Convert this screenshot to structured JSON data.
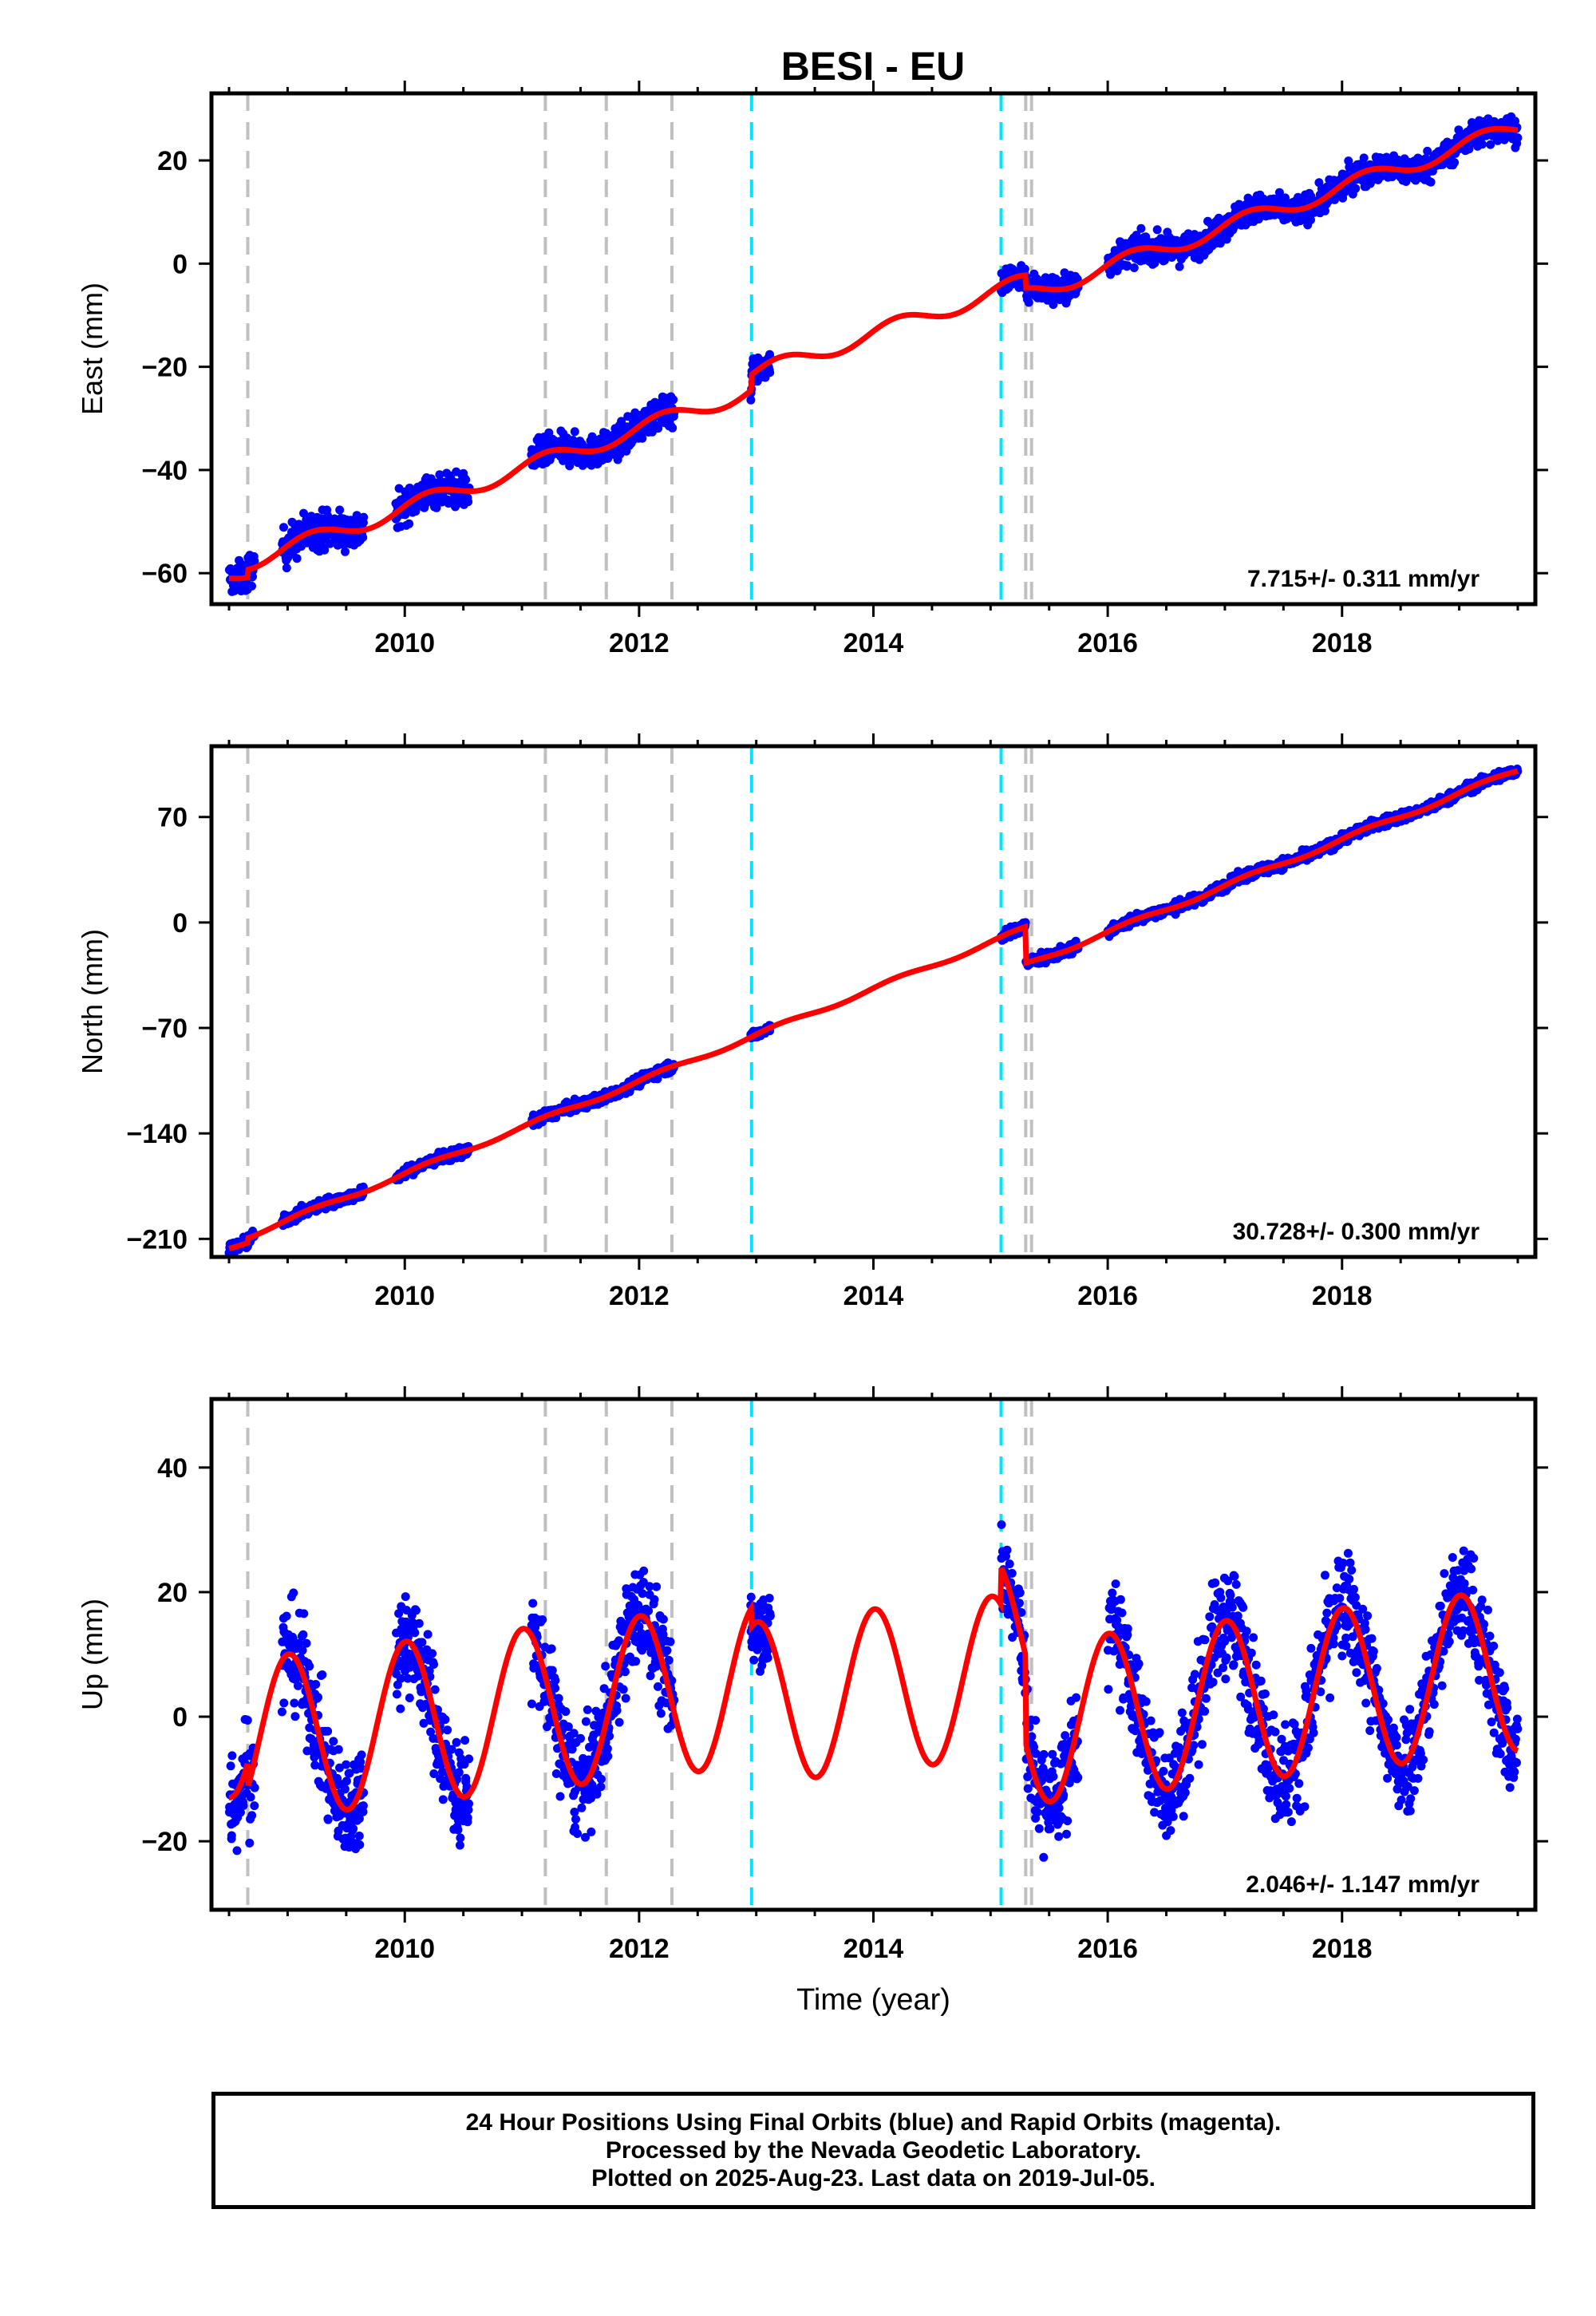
{
  "title": "BESI - EU",
  "footer": {
    "line1": "24 Hour Positions Using Final Orbits (blue) and Rapid Orbits (magenta).",
    "line2": "Processed by the Nevada Geodetic Laboratory.",
    "line3": "Plotted on 2025-Aug-23. Last data on 2019-Jul-05."
  },
  "colors": {
    "data": "#0000ff",
    "model": "#ff0000",
    "event_gray": "#c0c0c0",
    "event_cyan": "#00e5ff",
    "frame": "#000000"
  },
  "chart_data": [
    {
      "type": "scatter",
      "ylabel": "East (mm)",
      "xlim": [
        2008.35,
        2019.65
      ],
      "ylim": [
        -66,
        33
      ],
      "xticks": [
        2010,
        2012,
        2014,
        2016,
        2018
      ],
      "yticks": [
        -60,
        -40,
        -20,
        0,
        20
      ],
      "rate_label": "7.715+/- 0.311 mm/yr",
      "gray_lines": [
        2008.66,
        2011.2,
        2011.72,
        2012.28,
        2015.3,
        2015.35
      ],
      "cyan_lines": [
        2012.96,
        2015.09
      ],
      "data_segments": [
        {
          "t0": 2008.5,
          "t1": 2008.72,
          "n": 60,
          "noise": 2.2
        },
        {
          "t0": 2008.95,
          "t1": 2009.65,
          "n": 220,
          "noise": 2.6
        },
        {
          "t0": 2009.92,
          "t1": 2010.55,
          "n": 190,
          "noise": 2.3
        },
        {
          "t0": 2011.08,
          "t1": 2012.3,
          "n": 360,
          "noise": 2.1
        },
        {
          "t0": 2012.95,
          "t1": 2013.12,
          "n": 60,
          "noise": 1.8
        },
        {
          "t0": 2015.09,
          "t1": 2015.75,
          "n": 200,
          "noise": 2.0
        },
        {
          "t0": 2016.0,
          "t1": 2019.5,
          "n": 950,
          "noise": 1.9
        }
      ],
      "model": {
        "rate": 7.715,
        "ref_year": 2008.5,
        "ref_value": -60.5,
        "amp": 1.6,
        "phase": 0.3,
        "offsets": [
          {
            "t": 2008.66,
            "dy": 1.5
          },
          {
            "t": 2012.96,
            "dy": 3.0
          },
          {
            "t": 2015.3,
            "dy": -2.5
          }
        ]
      }
    },
    {
      "type": "scatter",
      "ylabel": "North (mm)",
      "xlim": [
        2008.35,
        2019.65
      ],
      "ylim": [
        -222,
        117
      ],
      "xticks": [
        2010,
        2012,
        2014,
        2016,
        2018
      ],
      "yticks": [
        -210,
        -140,
        -70,
        0,
        70
      ],
      "rate_label": "30.728+/- 0.300 mm/yr",
      "gray_lines": [
        2008.66,
        2011.2,
        2011.72,
        2012.28,
        2015.3,
        2015.35
      ],
      "cyan_lines": [
        2012.96,
        2015.09
      ],
      "data_segments": [
        {
          "t0": 2008.5,
          "t1": 2008.72,
          "n": 60,
          "noise": 2.5
        },
        {
          "t0": 2008.95,
          "t1": 2009.65,
          "n": 220,
          "noise": 2.5
        },
        {
          "t0": 2009.92,
          "t1": 2010.55,
          "n": 190,
          "noise": 2.5
        },
        {
          "t0": 2011.08,
          "t1": 2012.3,
          "n": 360,
          "noise": 2.5
        },
        {
          "t0": 2012.95,
          "t1": 2013.12,
          "n": 60,
          "noise": 2.0
        },
        {
          "t0": 2015.09,
          "t1": 2015.75,
          "n": 200,
          "noise": 2.5
        },
        {
          "t0": 2016.0,
          "t1": 2019.5,
          "n": 950,
          "noise": 2.5
        }
      ],
      "model": {
        "rate": 30.728,
        "ref_year": 2008.5,
        "ref_value": -216.0,
        "amp": 1.5,
        "phase": 0.3,
        "offsets": [
          {
            "t": 2008.66,
            "dy": 3.0
          },
          {
            "t": 2015.3,
            "dy": -24.0
          }
        ]
      }
    },
    {
      "type": "scatter",
      "ylabel": "Up (mm)",
      "xlabel": "Time (year)",
      "xlim": [
        2008.35,
        2019.65
      ],
      "ylim": [
        -31,
        51
      ],
      "xticks": [
        2010,
        2012,
        2014,
        2016,
        2018
      ],
      "yticks": [
        -20,
        0,
        20,
        40
      ],
      "rate_label": "2.046+/- 1.147 mm/yr",
      "gray_lines": [
        2008.66,
        2011.2,
        2011.72,
        2012.28,
        2015.3,
        2015.35
      ],
      "cyan_lines": [
        2012.96,
        2015.09
      ],
      "data_segments": [
        {
          "t0": 2008.5,
          "t1": 2008.72,
          "n": 60,
          "noise": 6.0
        },
        {
          "t0": 2008.95,
          "t1": 2009.65,
          "n": 220,
          "noise": 6.0
        },
        {
          "t0": 2009.92,
          "t1": 2010.55,
          "n": 190,
          "noise": 6.0
        },
        {
          "t0": 2011.08,
          "t1": 2012.3,
          "n": 360,
          "noise": 6.0
        },
        {
          "t0": 2012.95,
          "t1": 2013.12,
          "n": 60,
          "noise": 4.5
        },
        {
          "t0": 2015.09,
          "t1": 2015.75,
          "n": 200,
          "noise": 6.0
        },
        {
          "t0": 2016.0,
          "t1": 2019.5,
          "n": 950,
          "noise": 6.0
        }
      ],
      "model": {
        "rate": 2.046,
        "ref_year": 2008.5,
        "ref_value": 0.0,
        "amp": 13.0,
        "phase": 1.5,
        "offsets": [
          {
            "t": 2008.66,
            "dy": -4.0
          },
          {
            "t": 2012.96,
            "dy": -3.0
          },
          {
            "t": 2015.09,
            "dy": 6.0
          },
          {
            "t": 2015.3,
            "dy": -14.0
          }
        ]
      }
    }
  ]
}
